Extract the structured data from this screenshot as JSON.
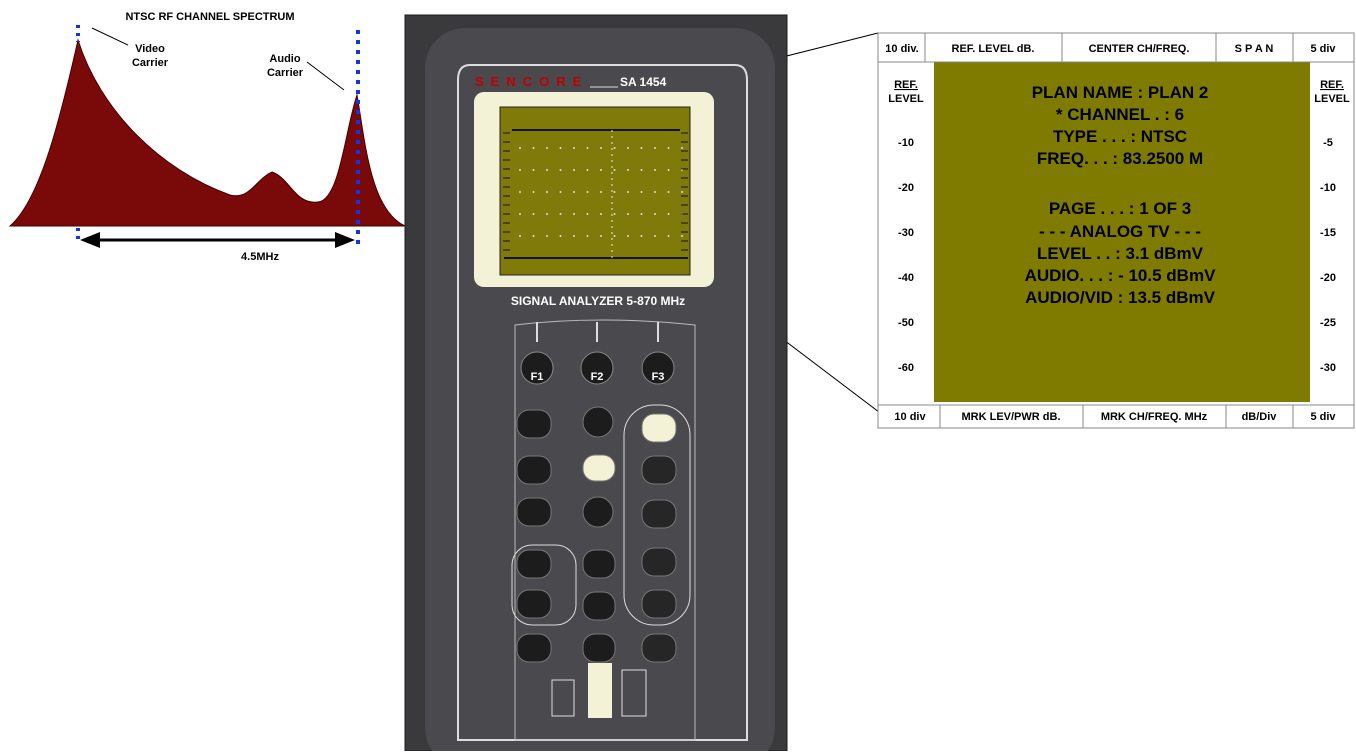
{
  "spectrum": {
    "title": "NTSC RF CHANNEL SPECTRUM",
    "video_label": [
      "Video",
      "Carrier"
    ],
    "audio_label": [
      "Audio",
      "Carrier"
    ],
    "spacing": "4.5MHz"
  },
  "device": {
    "brand": "SENCORE",
    "model": "SA 1454",
    "subtitle": "SIGNAL ANALYZER 5-870 MHz",
    "function_keys": [
      "F1",
      "F2",
      "F3"
    ]
  },
  "panel": {
    "top": [
      "10 div.",
      "REF. LEVEL dB.",
      "CENTER CH/FREQ.",
      "S P A N",
      "5 div"
    ],
    "left_axis": {
      "title": [
        "REF.",
        "LEVEL"
      ],
      "labels": [
        "-10",
        "-20",
        "-30",
        "-40",
        "-50",
        "-60"
      ]
    },
    "right_axis": {
      "title": [
        "REF.",
        "LEVEL"
      ],
      "labels": [
        "-5",
        "-10",
        "-15",
        "-20",
        "-25",
        "-30"
      ]
    },
    "bottom": [
      "10 div",
      "MRK LEV/PWR dB.",
      "MRK CH/FREQ. MHz",
      "dB/Div",
      "5 div"
    ],
    "screen": [
      "PLAN NAME :  PLAN 2",
      "* CHANNEL . :   6",
      "TYPE . . . :   NTSC",
      "FREQ. . . : 83.2500 M",
      "PAGE . . . : 1 OF 3",
      "- - - ANALOG TV - - -",
      "LEVEL . .   :    3.1 dBmV",
      "AUDIO. . . : - 10.5 dBmV",
      "AUDIO/VID :  13.5 dBmV"
    ]
  }
}
